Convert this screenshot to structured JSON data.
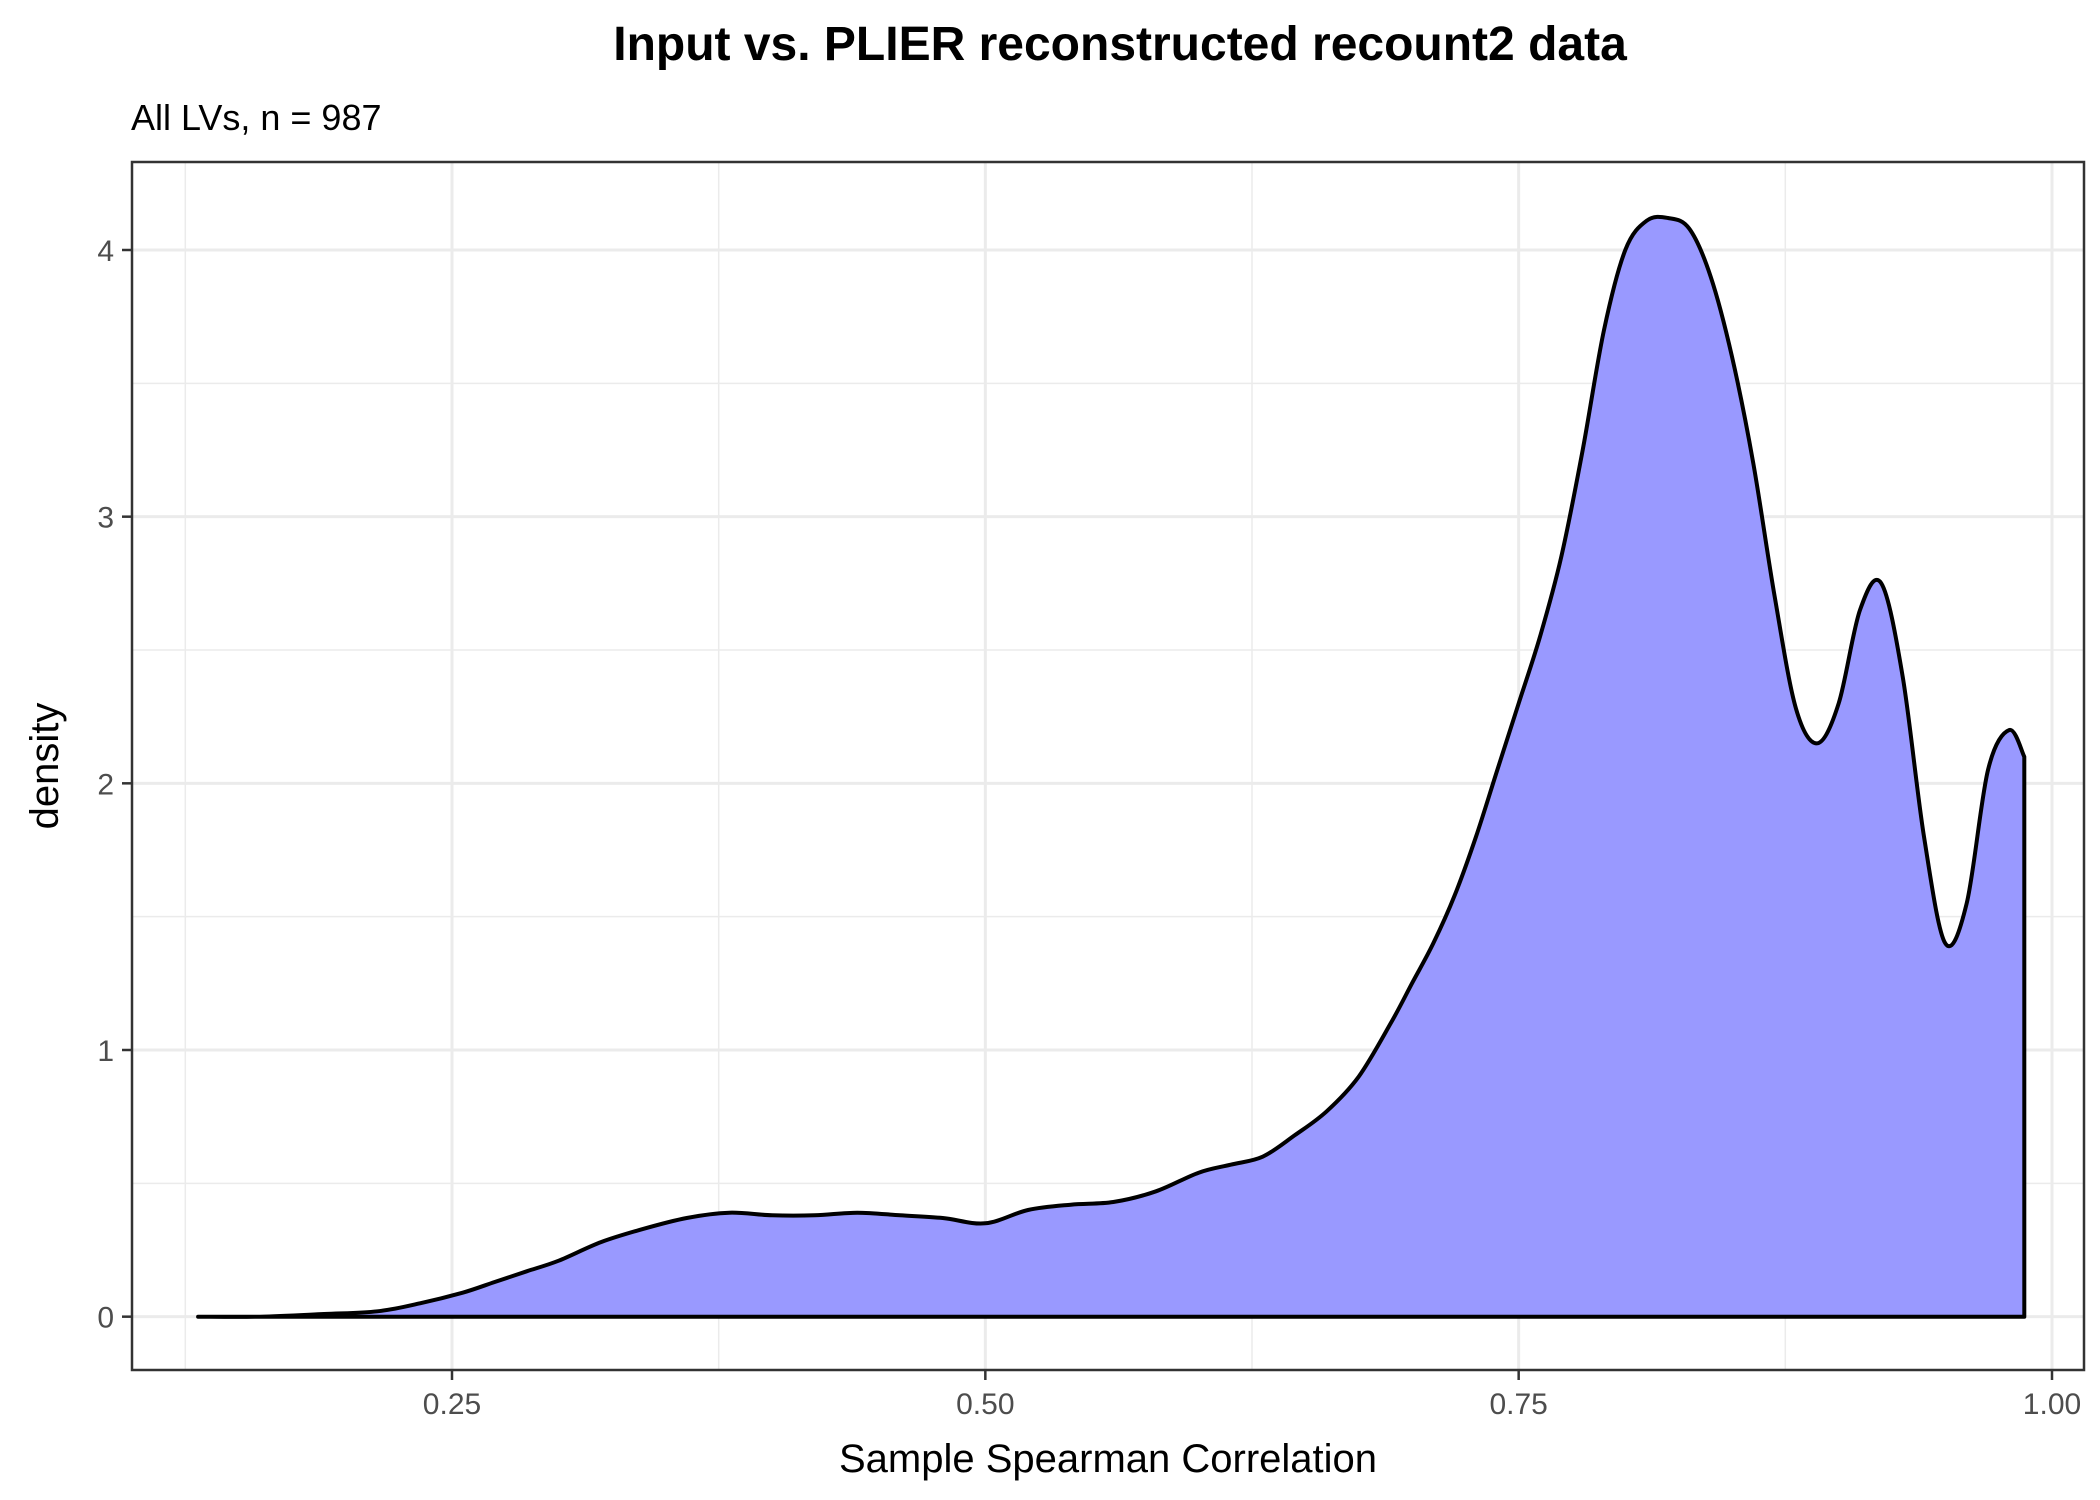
{
  "chart_data": {
    "type": "area",
    "title": "Input vs. PLIER reconstructed recount2 data",
    "subtitle": "All LVs, n = 987",
    "xlabel": "Sample Spearman Correlation",
    "ylabel": "density",
    "xlim": [
      0.1,
      1.015
    ],
    "ylim": [
      -0.2,
      4.33
    ],
    "x_ticks": [
      0.25,
      0.5,
      0.75,
      1.0
    ],
    "x_tick_labels": [
      "0.25",
      "0.50",
      "0.75",
      "1.00"
    ],
    "y_ticks": [
      0,
      1,
      2,
      3,
      4
    ],
    "y_tick_labels": [
      "0",
      "1",
      "2",
      "3",
      "4"
    ],
    "grid": true,
    "fill_color": "#9999ff",
    "line_color": "#000000",
    "x": [
      0.131,
      0.16,
      0.19,
      0.215,
      0.235,
      0.255,
      0.27,
      0.285,
      0.3,
      0.32,
      0.34,
      0.36,
      0.38,
      0.4,
      0.42,
      0.44,
      0.46,
      0.48,
      0.5,
      0.52,
      0.54,
      0.56,
      0.58,
      0.6,
      0.615,
      0.63,
      0.645,
      0.66,
      0.675,
      0.69,
      0.7,
      0.71,
      0.72,
      0.73,
      0.74,
      0.75,
      0.76,
      0.77,
      0.78,
      0.79,
      0.8,
      0.81,
      0.82,
      0.83,
      0.84,
      0.85,
      0.86,
      0.87,
      0.88,
      0.89,
      0.9,
      0.91,
      0.92,
      0.93,
      0.94,
      0.95,
      0.96,
      0.97,
      0.98,
      0.987
    ],
    "values": [
      0.0,
      0.0,
      0.01,
      0.02,
      0.05,
      0.09,
      0.13,
      0.17,
      0.21,
      0.28,
      0.33,
      0.37,
      0.39,
      0.38,
      0.38,
      0.39,
      0.38,
      0.37,
      0.35,
      0.4,
      0.42,
      0.43,
      0.47,
      0.54,
      0.57,
      0.6,
      0.68,
      0.77,
      0.9,
      1.1,
      1.25,
      1.4,
      1.58,
      1.8,
      2.05,
      2.3,
      2.55,
      2.85,
      3.25,
      3.7,
      4.0,
      4.11,
      4.12,
      4.08,
      3.9,
      3.6,
      3.2,
      2.7,
      2.28,
      2.15,
      2.3,
      2.65,
      2.75,
      2.4,
      1.8,
      1.4,
      1.55,
      2.05,
      2.2,
      2.1
    ]
  }
}
